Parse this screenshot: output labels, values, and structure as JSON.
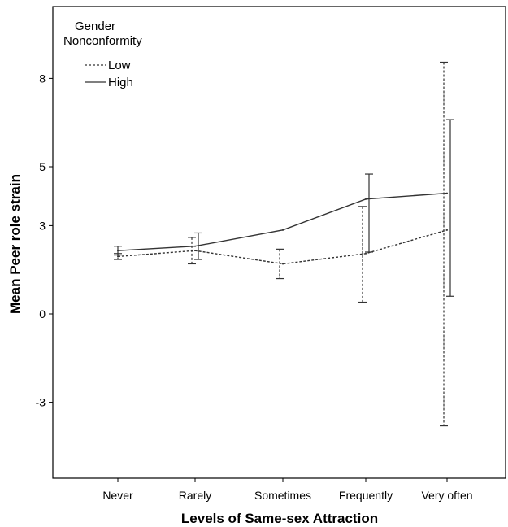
{
  "chart_data": {
    "type": "line",
    "title": "",
    "xlabel": "Levels of Same-sex Attraction",
    "ylabel": "Mean Peer role strain",
    "categories": [
      "Never",
      "Rarely",
      "Sometimes",
      "Frequently",
      "Very often"
    ],
    "yticks": [
      8,
      5,
      3,
      0,
      -3
    ],
    "ylim": [
      -6.0,
      9.3
    ],
    "grid": false,
    "legend": {
      "title": "Gender Nonconformity",
      "title_lines": [
        "Gender",
        "Nonconformity"
      ],
      "position": "top-left"
    },
    "series": [
      {
        "name": "Low",
        "style": "dashed",
        "values": [
          1.95,
          2.15,
          1.7,
          2.05,
          2.85
        ],
        "error_low": [
          1.85,
          1.7,
          1.2,
          0.4,
          -3.8
        ],
        "error_high": [
          2.05,
          2.6,
          2.2,
          3.65,
          8.55
        ]
      },
      {
        "name": "High",
        "style": "solid",
        "values": [
          2.15,
          2.3,
          2.85,
          3.9,
          4.1
        ],
        "error_low": [
          2.0,
          1.85,
          null,
          2.1,
          0.6
        ],
        "error_high": [
          2.3,
          2.75,
          null,
          4.75,
          6.6
        ]
      }
    ],
    "colors": {
      "line": "#333333",
      "axis": "#000000"
    }
  }
}
